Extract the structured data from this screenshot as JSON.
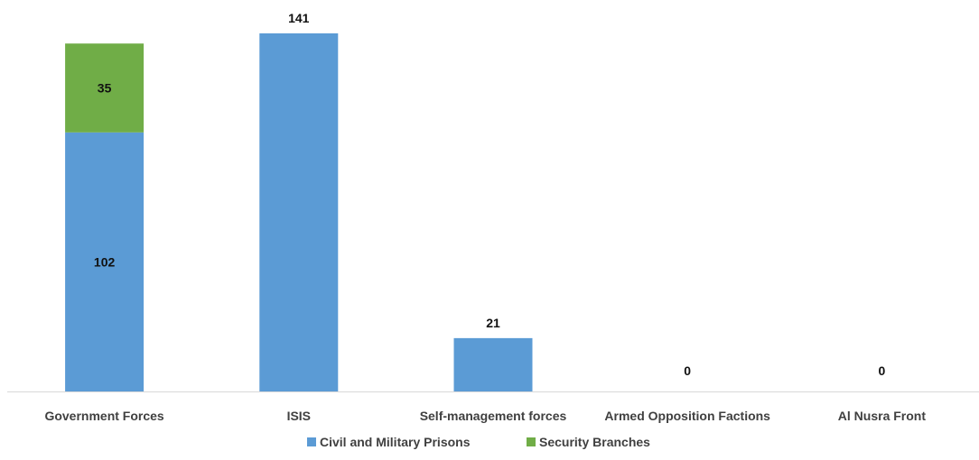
{
  "chart_data": {
    "type": "bar",
    "stacked": true,
    "categories": [
      "Government Forces",
      "ISIS",
      "Self-management forces",
      "Armed Opposition Factions",
      "Al Nusra Front"
    ],
    "series": [
      {
        "name": "Civil and Military Prisons",
        "color": "#5B9BD5",
        "values": [
          102,
          141,
          21,
          0,
          0
        ]
      },
      {
        "name": "Security Branches",
        "color": "#70AD47",
        "values": [
          35,
          0,
          0,
          0,
          0
        ]
      }
    ],
    "data_labels": [
      "102",
      "35",
      "141",
      "21",
      "0",
      "0"
    ],
    "ylim": [
      0,
      150
    ],
    "grid": false,
    "legend": "bottom",
    "axis_color": "#D9D9D9"
  }
}
